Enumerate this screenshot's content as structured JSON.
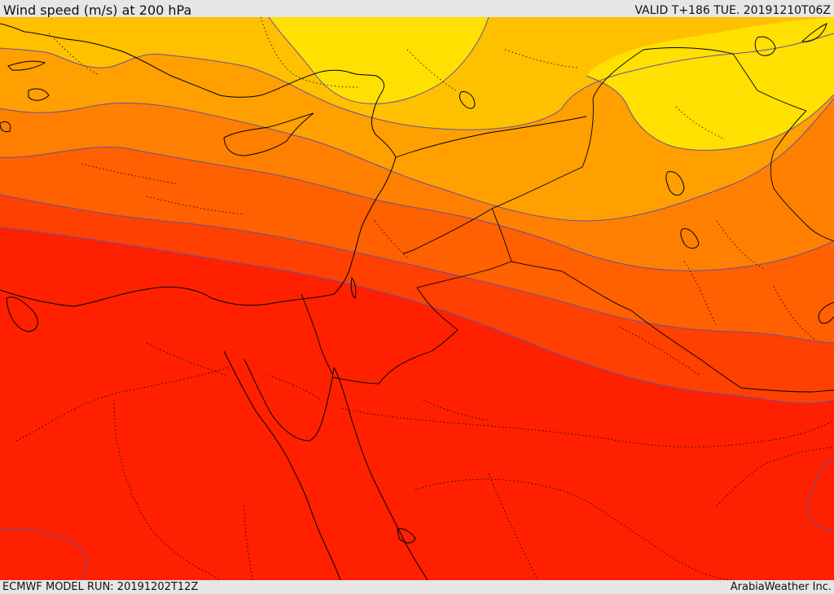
{
  "header": {
    "title": "Wind speed (m/s) at 200 hPa",
    "valid_time": "VALID T+186 TUE. 20191210T06Z"
  },
  "footer": {
    "model_run": "ECMWF MODEL RUN: 20191202T12Z",
    "credit": "ArabiaWeather Inc."
  },
  "colors": {
    "band_1": "#ffe000",
    "band_2": "#ffc000",
    "band_3": "#ffa000",
    "band_4": "#ff8000",
    "band_5": "#ff6000",
    "band_6": "#ff4000",
    "band_7": "#ff2000",
    "contour": "#6a4fa0",
    "coastline": "#000000"
  }
}
